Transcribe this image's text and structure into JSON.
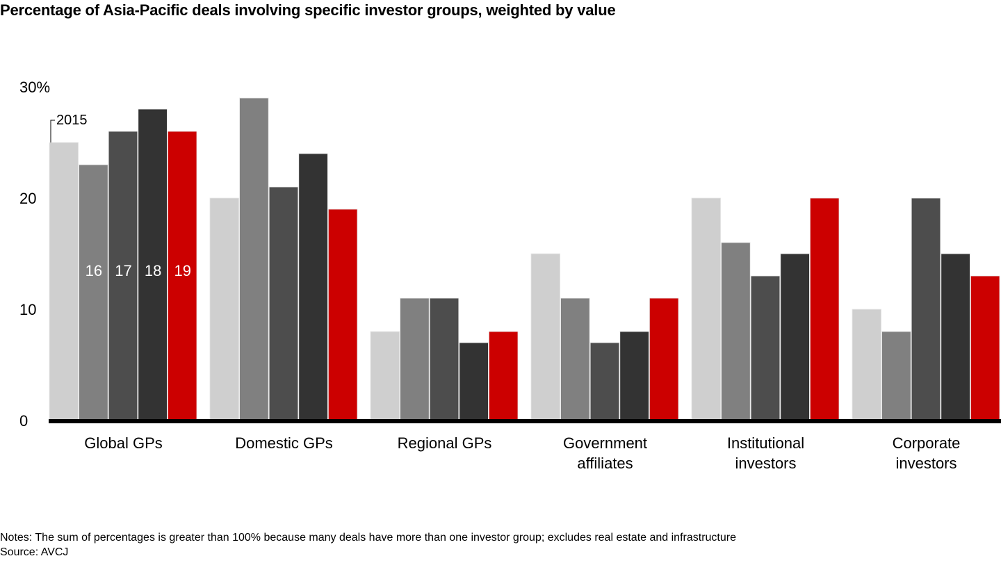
{
  "chart_data": {
    "type": "bar",
    "title": "Percentage of Asia-Pacific deals involving specific investor groups, weighted by value",
    "xlabel": "",
    "ylabel": "",
    "ylim": [
      0,
      30
    ],
    "yticks": [
      {
        "value": 0,
        "label": "0"
      },
      {
        "value": 10,
        "label": "10"
      },
      {
        "value": 20,
        "label": "20"
      },
      {
        "value": 30,
        "label": "30%"
      }
    ],
    "grid": false,
    "categories": [
      [
        "Global GPs"
      ],
      [
        "Domestic GPs"
      ],
      [
        "Regional GPs"
      ],
      [
        "Government",
        "affiliates"
      ],
      [
        "Institutional",
        "investors"
      ],
      [
        "Corporate",
        "investors"
      ]
    ],
    "series": [
      {
        "name": "2015",
        "color": "#cfcfcf",
        "values": [
          25,
          20,
          8,
          15,
          20,
          10
        ]
      },
      {
        "name": "16",
        "color": "#808080",
        "values": [
          23,
          29,
          11,
          11,
          16,
          8
        ]
      },
      {
        "name": "17",
        "color": "#4d4d4d",
        "values": [
          26,
          21,
          11,
          7,
          13,
          20
        ]
      },
      {
        "name": "18",
        "color": "#333333",
        "values": [
          28,
          24,
          7,
          8,
          15,
          15
        ]
      },
      {
        "name": "19",
        "color": "#cc0000",
        "values": [
          26,
          19,
          8,
          11,
          20,
          13
        ]
      }
    ],
    "legend": {
      "placement": "inline-first-group",
      "first_label": "2015",
      "inside_labels": [
        "16",
        "17",
        "18",
        "19"
      ]
    }
  },
  "notes": {
    "line1": "Notes: The sum of percentages is greater than 100% because many deals have more than one investor group; excludes real estate and infrastructure",
    "line2": "Source: AVCJ"
  }
}
